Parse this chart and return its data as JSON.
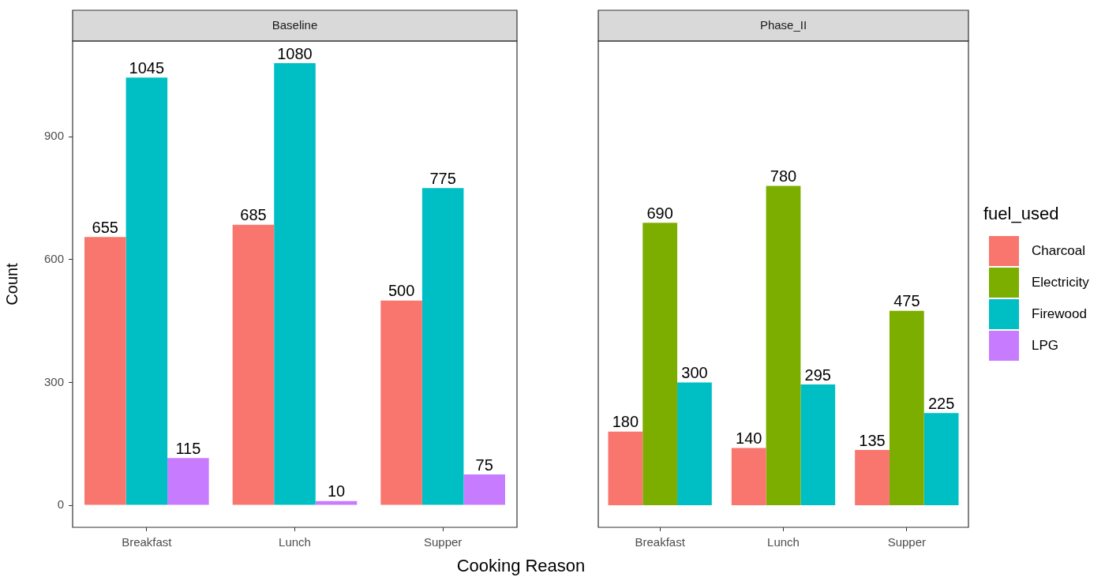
{
  "chart_data": [
    {
      "type": "bar",
      "title": "Baseline",
      "xlabel": "Cooking Reason",
      "ylabel": "Count",
      "categories": [
        "Breakfast",
        "Lunch",
        "Supper"
      ],
      "series": [
        {
          "name": "Charcoal",
          "color": "#f8766d",
          "values": [
            655,
            685,
            500
          ]
        },
        {
          "name": "Firewood",
          "color": "#00bfc4",
          "values": [
            1045,
            1080,
            775
          ]
        },
        {
          "name": "LPG",
          "color": "#c77cff",
          "values": [
            115,
            10,
            75
          ]
        }
      ],
      "ylim": [
        -54,
        1134
      ],
      "yticks": [
        0,
        300,
        600,
        900
      ],
      "grid": false,
      "legend": "right",
      "data_labels": true
    },
    {
      "type": "bar",
      "title": "Phase_II",
      "categories": [
        "Breakfast",
        "Lunch",
        "Supper"
      ],
      "series": [
        {
          "color": "#f8766d",
          "values": [
            180,
            140,
            135
          ]
        },
        {
          "name": "Electricity",
          "color": "#7cae00",
          "values": [
            690,
            780,
            475
          ]
        },
        {
          "color": "#00bfc4",
          "values": [
            300,
            295,
            225
          ]
        }
      ],
      "ylim": [
        -54,
        1134
      ],
      "yticks": [
        0,
        300,
        600,
        900
      ],
      "grid": false,
      "legend": "right",
      "legend_title": "fuel_used",
      "tick_labels": "x",
      "data_labels": true
    }
  ]
}
